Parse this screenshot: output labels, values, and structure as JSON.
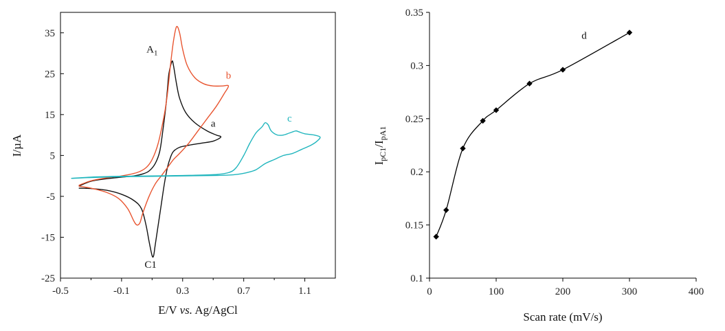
{
  "chart_data": [
    {
      "type": "line",
      "title": "",
      "xlabel": "E/V vs. Ag/AgCl",
      "xlabel_parts": {
        "prefix": "E/V ",
        "italic": "vs.",
        "suffix": " Ag/AgCl"
      },
      "ylabel": "I/µA",
      "xlim": [
        -0.5,
        1.3
      ],
      "ylim": [
        -25,
        40
      ],
      "xticks": [
        -0.5,
        -0.1,
        0.3,
        0.7,
        1.1
      ],
      "xtick_labels": [
        "-0.5",
        "-0.1",
        "0.3",
        "0.7",
        "1.1"
      ],
      "yticks": [
        -25,
        -15,
        -5,
        5,
        15,
        25,
        35
      ],
      "ytick_labels": [
        "-25",
        "-15",
        "-5",
        "5",
        "15",
        "25",
        "35"
      ],
      "series": [
        {
          "name": "a",
          "color": "#111111",
          "x": [
            -0.38,
            -0.3,
            -0.2,
            -0.1,
            -0.02,
            0.04,
            0.08,
            0.12,
            0.15,
            0.17,
            0.19,
            0.2,
            0.21,
            0.23,
            0.24,
            0.26,
            0.28,
            0.32,
            0.38,
            0.46,
            0.52,
            0.55,
            0.5,
            0.42,
            0.34,
            0.28,
            0.24,
            0.22,
            0.2,
            0.18,
            0.16,
            0.14,
            0.12,
            0.11,
            0.1,
            0.08,
            0.06,
            0.03,
            -0.02,
            -0.1,
            -0.2,
            -0.3,
            -0.38
          ],
          "y": [
            -2.5,
            -1.3,
            -0.7,
            -0.3,
            0.0,
            0.5,
            1.2,
            3,
            6,
            11,
            17,
            21,
            25,
            28,
            27,
            22.5,
            19,
            15.5,
            13,
            11,
            10,
            9.5,
            8.5,
            8,
            7.5,
            7,
            6,
            4.5,
            2,
            -2,
            -7,
            -12,
            -17,
            -19.5,
            -19.5,
            -16,
            -12,
            -8,
            -6,
            -4.5,
            -3.5,
            -3.1,
            -3.0
          ]
        },
        {
          "name": "b",
          "color": "#e8542f",
          "x": [
            -0.38,
            -0.3,
            -0.2,
            -0.1,
            0.0,
            0.06,
            0.1,
            0.14,
            0.18,
            0.2,
            0.22,
            0.24,
            0.26,
            0.28,
            0.3,
            0.33,
            0.38,
            0.44,
            0.5,
            0.56,
            0.6,
            0.57,
            0.52,
            0.46,
            0.4,
            0.34,
            0.28,
            0.24,
            0.2,
            0.16,
            0.12,
            0.08,
            0.04,
            0.02,
            0.0,
            -0.02,
            -0.06,
            -0.12,
            -0.2,
            -0.3,
            -0.38
          ],
          "y": [
            -2.3,
            -1.2,
            -0.5,
            0.0,
            0.8,
            2,
            4,
            8,
            15,
            20,
            27,
            33,
            36.5,
            35,
            31,
            27,
            24,
            22.5,
            22,
            22,
            22,
            20,
            17,
            14,
            11,
            8,
            5.5,
            4,
            2,
            0,
            -2,
            -5,
            -9,
            -11.5,
            -12,
            -11,
            -8,
            -5.5,
            -4,
            -3,
            -2.5
          ]
        },
        {
          "name": "c",
          "color": "#1fb5bd",
          "x": [
            -0.43,
            -0.3,
            -0.1,
            0.1,
            0.3,
            0.5,
            0.6,
            0.65,
            0.7,
            0.74,
            0.78,
            0.82,
            0.84,
            0.86,
            0.88,
            0.92,
            0.96,
            1.0,
            1.04,
            1.06,
            1.1,
            1.16,
            1.2,
            1.18,
            1.14,
            1.08,
            1.02,
            0.96,
            0.9,
            0.84,
            0.78,
            0.72,
            0.66,
            0.6,
            0.5,
            0.3,
            0.1,
            -0.1,
            -0.3,
            -0.43
          ],
          "y": [
            -0.6,
            -0.3,
            -0.1,
            0.0,
            0.1,
            0.3,
            0.8,
            2,
            5,
            8,
            10.5,
            12,
            13,
            12.5,
            11,
            10,
            10,
            10.5,
            11,
            10.8,
            10.3,
            10,
            9.5,
            8.5,
            7.5,
            6.5,
            5.5,
            5,
            4,
            3,
            1.5,
            0.8,
            0.4,
            0.2,
            0.1,
            0.0,
            -0.1,
            -0.2,
            -0.4,
            -0.6
          ]
        }
      ],
      "annotations": [
        {
          "text": "A",
          "sub": "1",
          "x": 0.1,
          "y": 30.2,
          "color": "#111111"
        },
        {
          "text": "C1",
          "x": 0.09,
          "y": -22.5,
          "color": "#111111"
        },
        {
          "text": "a",
          "x": 0.5,
          "y": 12,
          "color": "#111111"
        },
        {
          "text": "b",
          "x": 0.6,
          "y": 23.8,
          "color": "#e8542f"
        },
        {
          "text": "c",
          "x": 1.0,
          "y": 13.3,
          "color": "#1fb5bd"
        }
      ]
    },
    {
      "type": "line",
      "title": "",
      "xlabel": "Scan rate (mV/s)",
      "ylabel": "IpC1/IpA1",
      "ylabel_parts": {
        "a": "I",
        "a_sub": "pC1",
        "sep": "/",
        "b": "I",
        "b_sub": "pA1"
      },
      "xlim": [
        0,
        400
      ],
      "ylim": [
        0.1,
        0.35
      ],
      "xticks": [
        0,
        100,
        200,
        300,
        400
      ],
      "xtick_labels": [
        "0",
        "100",
        "200",
        "300",
        "400"
      ],
      "yticks": [
        0.1,
        0.15,
        0.2,
        0.25,
        0.3,
        0.35
      ],
      "ytick_labels": [
        "0.1",
        "0.15",
        "0.2",
        "0.25",
        "0.3",
        "0.35"
      ],
      "series": [
        {
          "name": "d",
          "color": "#000000",
          "marker": "diamond",
          "x": [
            10,
            25,
            50,
            80,
            100,
            150,
            200,
            300
          ],
          "y": [
            0.139,
            0.164,
            0.222,
            0.248,
            0.258,
            0.283,
            0.296,
            0.331
          ]
        }
      ],
      "annotations": [
        {
          "text": "d",
          "x": 232,
          "y": 0.325,
          "color": "#111111"
        }
      ]
    }
  ]
}
